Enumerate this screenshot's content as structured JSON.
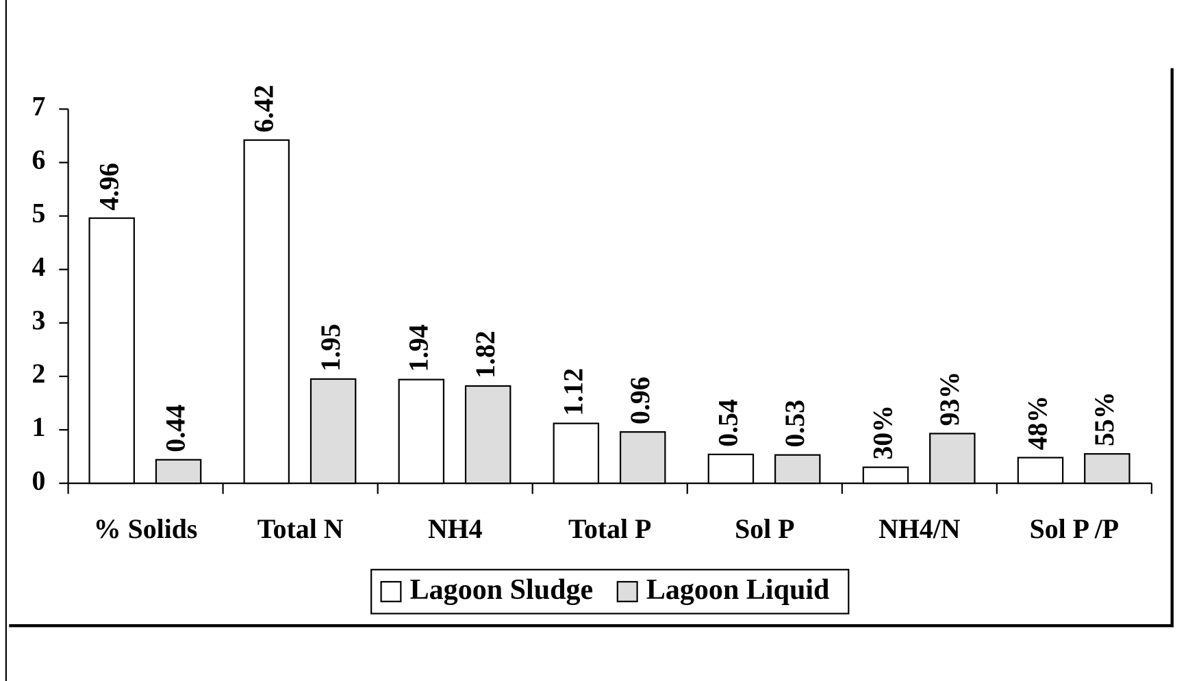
{
  "chart_data": {
    "type": "bar",
    "categories": [
      "% Solids",
      "Total N",
      "NH4",
      "Total P",
      "Sol P",
      "NH4/N",
      "Sol P /P"
    ],
    "series": [
      {
        "name": "Lagoon Sludge",
        "color": "#ffffff",
        "values": [
          4.96,
          6.42,
          1.94,
          1.12,
          0.54,
          0.3,
          0.48
        ],
        "value_labels": [
          "4.96",
          "6.42",
          "1.94",
          "1.12",
          "0.54",
          "30%",
          "48%"
        ]
      },
      {
        "name": "Lagoon Liquid",
        "color": "#dddddd",
        "values": [
          0.44,
          1.95,
          1.82,
          0.96,
          0.53,
          0.93,
          0.55
        ],
        "value_labels": [
          "0.44",
          "1.95",
          "1.82",
          "0.96",
          "0.53",
          "93%",
          "55%"
        ]
      }
    ],
    "ylim": [
      0,
      7
    ],
    "yticks": [
      0,
      1,
      2,
      3,
      4,
      5,
      6,
      7
    ],
    "legend": "bottom"
  }
}
